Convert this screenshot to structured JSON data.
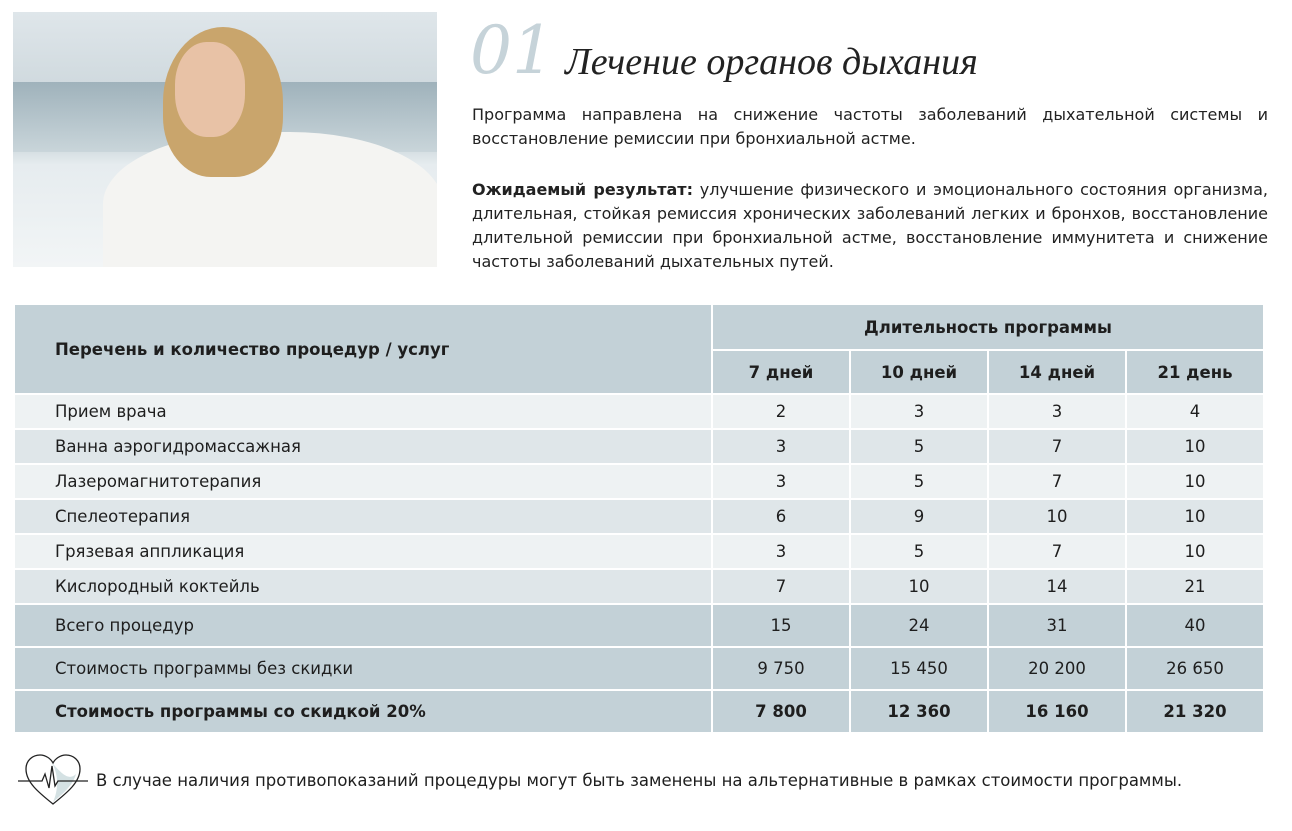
{
  "header": {
    "number": "01",
    "title": "Лечение органов дыхания"
  },
  "description": "Программа направлена на снижение частоты заболеваний дыхательной системы и восстановление ремиссии при бронхиальной астме.",
  "expected": {
    "label": "Ожидаемый результат:",
    "text": " улучшение физического и эмоционального состояния организма, длительная, стойкая ремиссия хронических заболеваний легких и бронхов, восстановление длительной ремиссии при бронхиальной астме, восстановление иммунитета и снижение частоты заболеваний дыхательных путей."
  },
  "table": {
    "col0": "Перечень и количество процедур / услуг",
    "group": "Длительность программы",
    "durations": [
      "7 дней",
      "10 дней",
      "14 дней",
      "21 день"
    ],
    "rows": [
      {
        "name": "Прием врача",
        "values": [
          "2",
          "3",
          "3",
          "4"
        ]
      },
      {
        "name": "Ванна аэрогидромассажная",
        "values": [
          "3",
          "5",
          "7",
          "10"
        ]
      },
      {
        "name": "Лазеромагнитотерапия",
        "values": [
          "3",
          "5",
          "7",
          "10"
        ]
      },
      {
        "name": "Спелеотерапия",
        "values": [
          "6",
          "9",
          "10",
          "10"
        ]
      },
      {
        "name": "Грязевая аппликация",
        "values": [
          "3",
          "5",
          "7",
          "10"
        ]
      },
      {
        "name": "Кислородный коктейль",
        "values": [
          "7",
          "10",
          "14",
          "21"
        ]
      }
    ],
    "totals": [
      {
        "name": "Всего процедур",
        "values": [
          "15",
          "24",
          "31",
          "40"
        ]
      },
      {
        "name": "Стоимость программы без скидки",
        "values": [
          "9 750",
          "15 450",
          "20 200",
          "26 650"
        ]
      },
      {
        "name": "Стоимость программы со скидкой 20%",
        "values": [
          "7 800",
          "12 360",
          "16 160",
          "21 320"
        ]
      }
    ]
  },
  "note": {
    "icon": "heart-pulse-icon",
    "text": "В случае наличия противопоказаний процедуры могут быть заменены на альтернативные в рамках стоимости программы."
  },
  "colors": {
    "header_bg": "#c3d1d7",
    "row_light": "#eef2f3",
    "row_dark": "#dfe6e9",
    "number": "#c6d3d9"
  }
}
